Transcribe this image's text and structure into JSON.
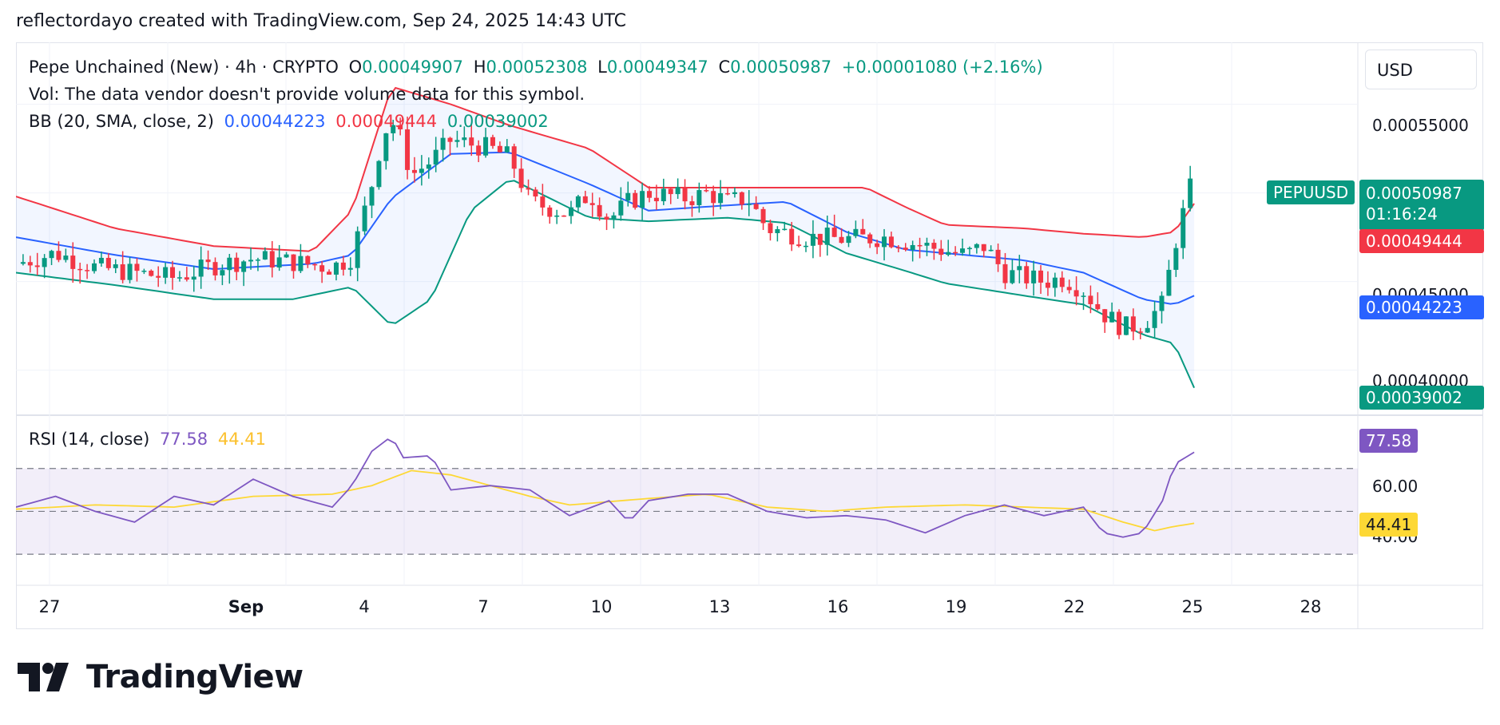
{
  "header": "reflectordayo created with TradingView.com, Sep 24, 2025 14:43 UTC",
  "currency_button": "USD",
  "legend": {
    "title": "Pepe Unchained (New) · 4h · CRYPTO",
    "o_label": "O",
    "o_value": "0.00049907",
    "h_label": "H",
    "h_value": "0.00052308",
    "l_label": "L",
    "l_value": "0.00049347",
    "c_label": "C",
    "c_value": "0.00050987",
    "change": "+0.00001080 (+2.16%)",
    "vol_text": "Vol: The data vendor doesn't provide volume data for this symbol.",
    "bb_label": "BB (20, SMA, close, 2)",
    "bb_basis": "0.00044223",
    "bb_upper": "0.00049444",
    "bb_lower": "0.00039002",
    "rsi_label": "RSI (14, close)",
    "rsi_value": "77.58",
    "rsi_ma": "44.41"
  },
  "price_axis": {
    "ticks": [
      "0.00055000",
      "0.00045000",
      "0.00040000"
    ],
    "symbol_badge": "PEPUUSD",
    "last_price": "0.00050987",
    "countdown": "01:16:24",
    "upper_badge": "0.00049444",
    "basis_badge": "0.00044223",
    "lower_badge": "0.00039002"
  },
  "rsi_axis": {
    "ticks": [
      "60.00",
      "40.00"
    ],
    "rsi_badge": "77.58",
    "ma_badge": "44.41"
  },
  "time_axis": [
    "27",
    "Sep",
    "4",
    "7",
    "10",
    "13",
    "16",
    "19",
    "22",
    "25",
    "28"
  ],
  "colors": {
    "up": "#089981",
    "down": "#f23645",
    "basis": "#2962ff",
    "upper": "#f23645",
    "lower": "#089981",
    "rsi": "#7e57c2",
    "rsi_ma": "#fdd835"
  },
  "chart_data": {
    "type": "candlestick",
    "timeframe": "4h",
    "symbol": "PEPUUSD",
    "ylim": [
      0.0004,
      0.00057
    ],
    "rsi_bands": [
      70,
      50,
      30
    ],
    "x_dates": [
      "Aug 27",
      "Sep 1",
      "Sep 4",
      "Sep 7",
      "Sep 10",
      "Sep 13",
      "Sep 16",
      "Sep 19",
      "Sep 22",
      "Sep 25",
      "Sep 28"
    ],
    "close_path": [
      [
        0.0,
        0.00046
      ],
      [
        1.0,
        0.000466
      ],
      [
        2.0,
        0.000458
      ],
      [
        3.0,
        0.000455
      ],
      [
        4.0,
        0.000452
      ],
      [
        5.0,
        0.000459
      ],
      [
        6.0,
        0.000463
      ],
      [
        7.0,
        0.000461
      ],
      [
        8.0,
        0.000458
      ],
      [
        8.5,
        0.000464
      ],
      [
        9.0,
        0.000505
      ],
      [
        9.3,
        0.000535
      ],
      [
        9.6,
        0.00054
      ],
      [
        10.0,
        0.00051
      ],
      [
        10.5,
        0.000518
      ],
      [
        11.0,
        0.00053
      ],
      [
        12.0,
        0.000525
      ],
      [
        12.5,
        0.00052
      ],
      [
        13.0,
        0.000495
      ],
      [
        14.0,
        0.000488
      ],
      [
        14.5,
        0.0005
      ],
      [
        15.0,
        0.000485
      ],
      [
        15.5,
        0.000495
      ],
      [
        16.0,
        0.0005
      ],
      [
        17.0,
        0.000497
      ],
      [
        17.5,
        0.0005
      ],
      [
        18.0,
        0.000495
      ],
      [
        18.5,
        0.000497
      ],
      [
        19.0,
        0.00048
      ],
      [
        20.0,
        0.000475
      ],
      [
        21.0,
        0.000474
      ],
      [
        22.0,
        0.000475
      ],
      [
        23.0,
        0.00047
      ],
      [
        24.0,
        0.000465
      ],
      [
        24.5,
        0.00047
      ],
      [
        25.0,
        0.000455
      ],
      [
        26.0,
        0.00045
      ],
      [
        26.5,
        0.000452
      ],
      [
        27.0,
        0.000445
      ],
      [
        27.5,
        0.000432
      ],
      [
        28.0,
        0.000424
      ],
      [
        28.5,
        0.000426
      ],
      [
        29.0,
        0.000437
      ],
      [
        29.3,
        0.00047
      ],
      [
        29.6,
        0.000495
      ],
      [
        29.8,
        0.00051
      ]
    ],
    "bb_upper_path": [
      [
        0.0,
        0.000498
      ],
      [
        2.5,
        0.00048
      ],
      [
        5.0,
        0.00047
      ],
      [
        7.5,
        0.000467
      ],
      [
        8.5,
        0.00049
      ],
      [
        9.5,
        0.00056
      ],
      [
        11.0,
        0.00055
      ],
      [
        12.5,
        0.000538
      ],
      [
        14.5,
        0.000525
      ],
      [
        16.0,
        0.000503
      ],
      [
        18.0,
        0.000503
      ],
      [
        20.0,
        0.000503
      ],
      [
        21.5,
        0.000503
      ],
      [
        22.5,
        0.000492
      ],
      [
        23.5,
        0.000482
      ],
      [
        25.5,
        0.00048
      ],
      [
        27.0,
        0.000477
      ],
      [
        28.5,
        0.000475
      ],
      [
        29.3,
        0.000478
      ],
      [
        29.8,
        0.000494
      ]
    ],
    "bb_basis_path": [
      [
        0.0,
        0.000475
      ],
      [
        2.5,
        0.000465
      ],
      [
        5.0,
        0.000457
      ],
      [
        7.5,
        0.00046
      ],
      [
        8.5,
        0.000465
      ],
      [
        9.5,
        0.000497
      ],
      [
        11.0,
        0.000522
      ],
      [
        12.5,
        0.000523
      ],
      [
        14.5,
        0.000505
      ],
      [
        16.0,
        0.00049
      ],
      [
        18.0,
        0.000493
      ],
      [
        19.5,
        0.000495
      ],
      [
        21.0,
        0.000478
      ],
      [
        22.5,
        0.000468
      ],
      [
        23.5,
        0.000466
      ],
      [
        25.5,
        0.000462
      ],
      [
        27.0,
        0.000455
      ],
      [
        28.5,
        0.00044
      ],
      [
        29.3,
        0.000437
      ],
      [
        29.8,
        0.000442
      ]
    ],
    "bb_lower_path": [
      [
        0.0,
        0.000455
      ],
      [
        2.5,
        0.000448
      ],
      [
        5.0,
        0.00044
      ],
      [
        7.0,
        0.00044
      ],
      [
        8.5,
        0.000447
      ],
      [
        9.5,
        0.000425
      ],
      [
        10.5,
        0.00044
      ],
      [
        11.5,
        0.00049
      ],
      [
        12.5,
        0.000508
      ],
      [
        14.5,
        0.000486
      ],
      [
        16.0,
        0.000484
      ],
      [
        18.0,
        0.000486
      ],
      [
        19.5,
        0.000483
      ],
      [
        21.0,
        0.000466
      ],
      [
        22.5,
        0.000456
      ],
      [
        23.5,
        0.000449
      ],
      [
        25.5,
        0.000442
      ],
      [
        27.0,
        0.000437
      ],
      [
        28.5,
        0.00042
      ],
      [
        29.3,
        0.000415
      ],
      [
        29.8,
        0.00039
      ]
    ],
    "rsi_path": [
      [
        0.0,
        52
      ],
      [
        1.0,
        57
      ],
      [
        2.0,
        50
      ],
      [
        3.0,
        45
      ],
      [
        4.0,
        57
      ],
      [
        5.0,
        53
      ],
      [
        6.0,
        65
      ],
      [
        7.0,
        57
      ],
      [
        8.0,
        52
      ],
      [
        8.5,
        62
      ],
      [
        9.0,
        78
      ],
      [
        9.5,
        85
      ],
      [
        9.8,
        75
      ],
      [
        10.5,
        76
      ],
      [
        11.0,
        60
      ],
      [
        12.0,
        62
      ],
      [
        13.0,
        60
      ],
      [
        14.0,
        48
      ],
      [
        15.0,
        55
      ],
      [
        15.5,
        45
      ],
      [
        16.0,
        55
      ],
      [
        17.0,
        58
      ],
      [
        18.0,
        58
      ],
      [
        19.0,
        50
      ],
      [
        20.0,
        47
      ],
      [
        21.0,
        48
      ],
      [
        22.0,
        46
      ],
      [
        23.0,
        40
      ],
      [
        24.0,
        48
      ],
      [
        25.0,
        53
      ],
      [
        26.0,
        48
      ],
      [
        27.0,
        52
      ],
      [
        27.5,
        40
      ],
      [
        28.0,
        38
      ],
      [
        28.5,
        40
      ],
      [
        29.0,
        55
      ],
      [
        29.3,
        72
      ],
      [
        29.8,
        77.58
      ]
    ],
    "rsi_ma_path": [
      [
        0.0,
        51
      ],
      [
        2.0,
        53
      ],
      [
        4.0,
        52
      ],
      [
        6.0,
        57
      ],
      [
        8.0,
        58
      ],
      [
        9.0,
        62
      ],
      [
        10.0,
        69
      ],
      [
        11.0,
        67
      ],
      [
        12.0,
        62
      ],
      [
        13.0,
        57
      ],
      [
        14.0,
        53
      ],
      [
        16.0,
        56
      ],
      [
        17.5,
        58
      ],
      [
        19.0,
        52
      ],
      [
        20.5,
        50
      ],
      [
        22.0,
        52
      ],
      [
        24.0,
        53
      ],
      [
        25.5,
        52
      ],
      [
        27.0,
        51
      ],
      [
        28.0,
        45
      ],
      [
        28.8,
        41
      ],
      [
        29.3,
        43
      ],
      [
        29.8,
        44.41
      ]
    ],
    "last_candle": {
      "open": 0.00049907,
      "high": 0.00052308,
      "low": 0.00049347,
      "close": 0.00050987
    }
  }
}
